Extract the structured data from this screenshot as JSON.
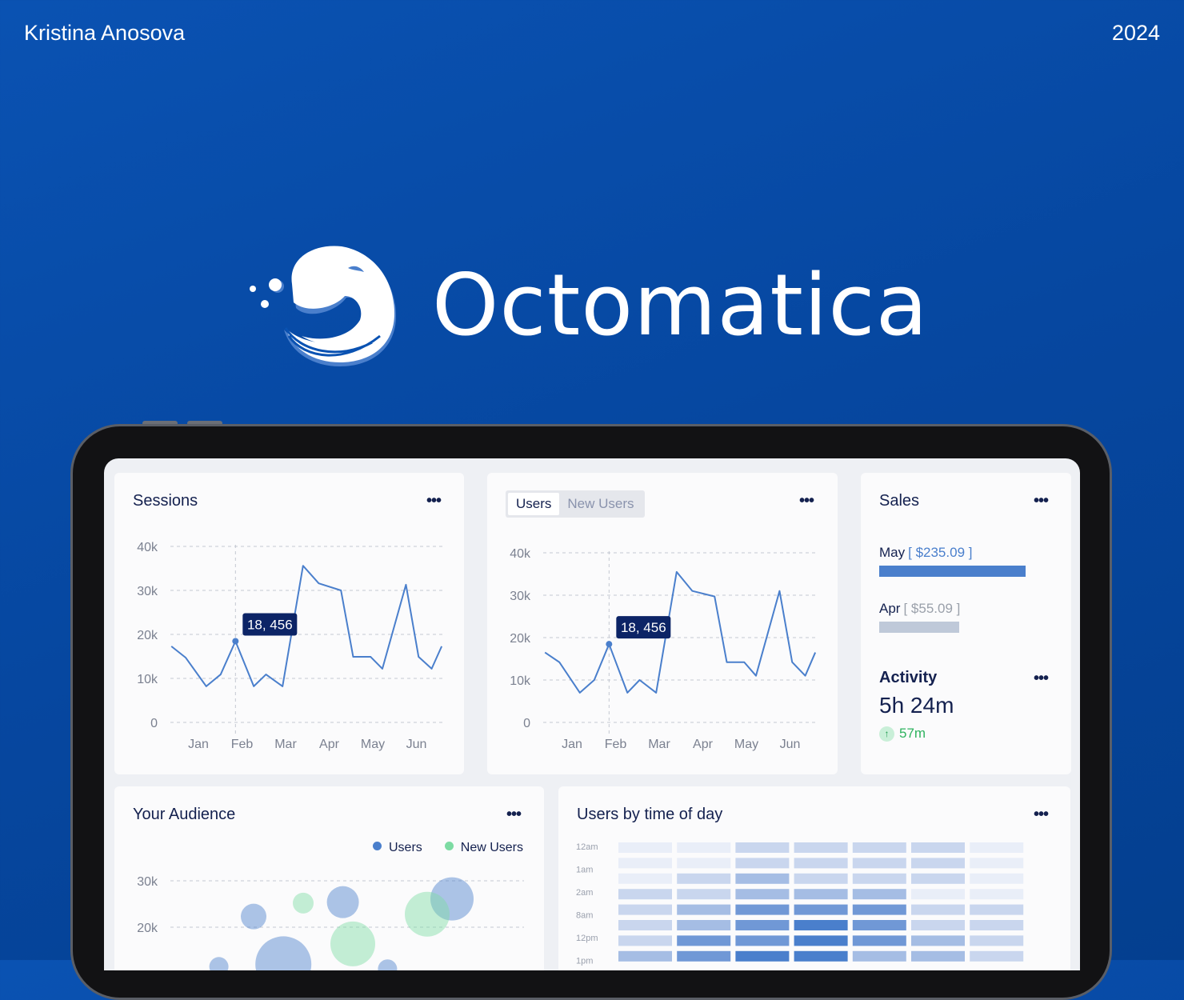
{
  "header": {
    "author": "Kristina Anosova",
    "year": "2024"
  },
  "brand": {
    "name": "Octomatica",
    "logo_icon": "octopus-logo-icon"
  },
  "colors": {
    "accent": "#4a7fcc",
    "navy": "#14214f",
    "green": "#7ddba3",
    "background": "#0a52b2"
  },
  "sessions": {
    "title": "Sessions",
    "menu_icon": "more-horizontal-icon",
    "chart_data": {
      "type": "line",
      "title": "Sessions",
      "categories": [
        "Jan",
        "Feb",
        "Mar",
        "Apr",
        "May",
        "Jun"
      ],
      "yticks": [
        "0",
        "10k",
        "20k",
        "30k",
        "40k"
      ],
      "ylim": [
        0,
        40000
      ],
      "grid": true,
      "points": [
        [
          -0.62,
          17300
        ],
        [
          -0.29,
          14700
        ],
        [
          0.18,
          8200
        ],
        [
          0.51,
          10900
        ],
        [
          0.85,
          18456
        ],
        [
          1.27,
          8200
        ],
        [
          1.55,
          10900
        ],
        [
          1.93,
          8200
        ],
        [
          2.4,
          35600
        ],
        [
          2.76,
          31600
        ],
        [
          3.27,
          30000
        ],
        [
          3.55,
          14900
        ],
        [
          3.95,
          14900
        ],
        [
          4.22,
          12200
        ],
        [
          4.76,
          31300
        ],
        [
          5.05,
          14900
        ],
        [
          5.35,
          12200
        ],
        [
          5.58,
          17300
        ]
      ],
      "tooltip": {
        "label": "18, 456",
        "x": 0.85,
        "y": 18456
      }
    }
  },
  "users": {
    "tabs": [
      {
        "label": "Users",
        "active": true
      },
      {
        "label": "New Users",
        "active": false
      }
    ],
    "menu_icon": "more-horizontal-icon",
    "chart_data": {
      "type": "line",
      "categories": [
        "Jan",
        "Feb",
        "Mar",
        "Apr",
        "May",
        "Jun"
      ],
      "yticks": [
        "0",
        "10k",
        "20k",
        "30k",
        "40k"
      ],
      "ylim": [
        0,
        40000
      ],
      "grid": true,
      "points": [
        [
          -0.62,
          16500
        ],
        [
          -0.29,
          14200
        ],
        [
          0.18,
          7000
        ],
        [
          0.51,
          10000
        ],
        [
          0.85,
          18456
        ],
        [
          1.27,
          7000
        ],
        [
          1.55,
          10000
        ],
        [
          1.93,
          7000
        ],
        [
          2.4,
          35500
        ],
        [
          2.76,
          31000
        ],
        [
          3.27,
          29700
        ],
        [
          3.55,
          14200
        ],
        [
          3.95,
          14200
        ],
        [
          4.22,
          11000
        ],
        [
          4.76,
          31000
        ],
        [
          5.05,
          14200
        ],
        [
          5.35,
          11000
        ],
        [
          5.58,
          16500
        ]
      ],
      "tooltip": {
        "label": "18, 456",
        "x": 0.85,
        "y": 18456
      }
    }
  },
  "sales": {
    "title": "Sales",
    "menu_icon": "more-horizontal-icon",
    "items": [
      {
        "month": "May",
        "value": "[ $235.09 ]",
        "amount": 235.09,
        "color": "#4a7fcc"
      },
      {
        "month": "Apr",
        "value": "[ $55.09 ]",
        "amount": 55.09,
        "color": "#bfc9d9"
      }
    ]
  },
  "activity": {
    "title": "Activity",
    "value": "5h 24m",
    "change": "57m",
    "change_icon": "arrow-up-icon",
    "menu_icon": "more-horizontal-icon"
  },
  "audience": {
    "title": "Your Audience",
    "menu_icon": "more-horizontal-icon",
    "chart_data": {
      "type": "scatter",
      "yticks": [
        "20k",
        "30k"
      ],
      "grid": true,
      "legend": "top-right",
      "series": [
        {
          "name": "Users",
          "color": "#4a7fcc",
          "points": [
            [
              1,
              22300,
              16
            ],
            [
              2.8,
              25400,
              20
            ],
            [
              5,
              26100,
              27
            ],
            [
              1.6,
              12000,
              35
            ],
            [
              3.7,
              11000,
              12
            ],
            [
              0.3,
              11500,
              12
            ]
          ]
        },
        {
          "name": "New Users",
          "color": "#7ddba3",
          "points": [
            [
              2,
              25200,
              13
            ],
            [
              4.5,
              22800,
              28
            ],
            [
              3,
              16400,
              28
            ]
          ]
        }
      ]
    }
  },
  "time_of_day": {
    "title": "Users by time of day",
    "menu_icon": "more-horizontal-icon",
    "chart_data": {
      "type": "heatmap",
      "row_labels": [
        "12am",
        "1am",
        "2am",
        "8am",
        "12pm",
        "1pm"
      ],
      "levels": [
        [
          0,
          0,
          1,
          1,
          1,
          1,
          0
        ],
        [
          0,
          0,
          1,
          1,
          1,
          1,
          0
        ],
        [
          0,
          1,
          2,
          1,
          1,
          1,
          0
        ],
        [
          1,
          1,
          2,
          2,
          2,
          0,
          0
        ],
        [
          1,
          2,
          3,
          3,
          3,
          1,
          1
        ],
        [
          1,
          2,
          3,
          4,
          3,
          1,
          1
        ],
        [
          1,
          3,
          3,
          4,
          3,
          2,
          1
        ],
        [
          2,
          3,
          4,
          4,
          2,
          2,
          1
        ]
      ],
      "palette": [
        "#e9eef8",
        "#c9d6ee",
        "#a5bde4",
        "#7098d6",
        "#4a7fcc"
      ]
    }
  }
}
